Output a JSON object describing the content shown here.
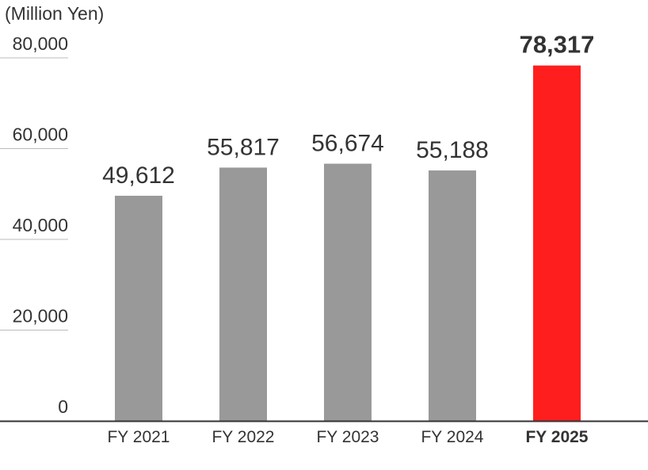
{
  "chart_data": {
    "type": "bar",
    "unit_label": "(Million Yen)",
    "categories": [
      "FY 2021",
      "FY 2022",
      "FY 2023",
      "FY 2024",
      "FY 2025"
    ],
    "values": [
      49612,
      55817,
      56674,
      55188,
      78317
    ],
    "value_labels": [
      "49,612",
      "55,817",
      "56,674",
      "55,188",
      "78,317"
    ],
    "ylim": [
      0,
      80000
    ],
    "yticks": [
      0,
      20000,
      40000,
      60000,
      80000
    ],
    "ytick_labels": [
      "0",
      "20,000",
      "40,000",
      "60,000",
      "80,000"
    ],
    "highlight_index": 4,
    "colors": {
      "bar": "#999999",
      "highlight": "#ff1e1e",
      "text": "#333333",
      "grid": "#bbbbbb",
      "axis": "#333333"
    },
    "grid": true,
    "legend": "none"
  }
}
